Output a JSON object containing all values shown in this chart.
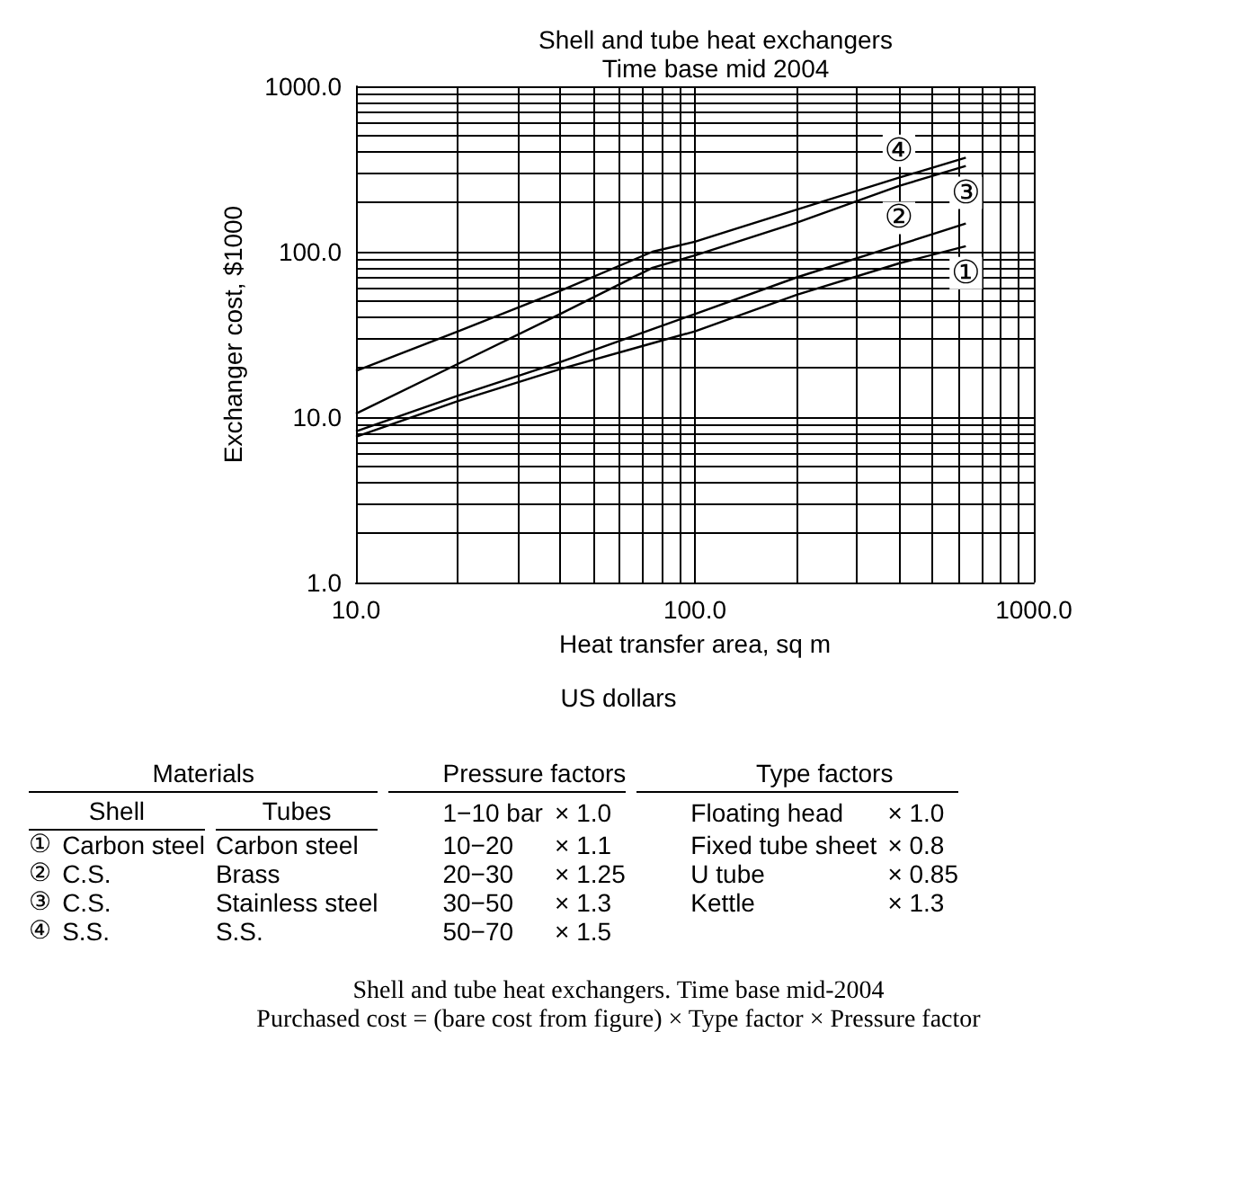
{
  "chart_data": {
    "type": "line",
    "title": "Shell and tube heat exchangers",
    "subtitle": "Time base mid 2004",
    "xlabel": "Heat transfer area, sq m",
    "ylabel": "Exchanger cost, $1000",
    "log": "xy",
    "grid": true,
    "legend": false,
    "marker": "none",
    "line_style": "solid",
    "x": [
      10,
      20,
      40,
      75,
      100,
      200,
      400,
      630
    ],
    "series": [
      {
        "name": "①",
        "color": "#000000",
        "values": [
          7.6,
          12.5,
          19.5,
          28,
          33,
          55,
          85,
          108
        ]
      },
      {
        "name": "②",
        "color": "#000000",
        "values": [
          8.2,
          13.5,
          21.5,
          34,
          42,
          70,
          110,
          148
        ]
      },
      {
        "name": "③",
        "color": "#000000",
        "values": [
          10.5,
          21,
          42,
          80,
          95,
          150,
          250,
          330
        ]
      },
      {
        "name": "④",
        "color": "#000000",
        "values": [
          19,
          33,
          58,
          100,
          115,
          180,
          280,
          370
        ]
      }
    ],
    "xlim": [
      10,
      1000
    ],
    "ylim": [
      1,
      1000
    ],
    "xticks": [
      {
        "value": 10,
        "label": "10.0"
      },
      {
        "value": 20,
        "label": null
      },
      {
        "value": 30,
        "label": null
      },
      {
        "value": 40,
        "label": null
      },
      {
        "value": 50,
        "label": null
      },
      {
        "value": 60,
        "label": null
      },
      {
        "value": 70,
        "label": null
      },
      {
        "value": 80,
        "label": null
      },
      {
        "value": 90,
        "label": null
      },
      {
        "value": 100,
        "label": "100.0"
      },
      {
        "value": 200,
        "label": null
      },
      {
        "value": 300,
        "label": null
      },
      {
        "value": 400,
        "label": null
      },
      {
        "value": 500,
        "label": null
      },
      {
        "value": 600,
        "label": null
      },
      {
        "value": 700,
        "label": null
      },
      {
        "value": 800,
        "label": null
      },
      {
        "value": 900,
        "label": null
      },
      {
        "value": 1000,
        "label": "1000.0"
      }
    ],
    "yticks": [
      {
        "value": 1,
        "label": "1.0"
      },
      {
        "value": 2,
        "label": null
      },
      {
        "value": 3,
        "label": null
      },
      {
        "value": 4,
        "label": null
      },
      {
        "value": 5,
        "label": null
      },
      {
        "value": 6,
        "label": null
      },
      {
        "value": 7,
        "label": null
      },
      {
        "value": 8,
        "label": null
      },
      {
        "value": 9,
        "label": null
      },
      {
        "value": 10,
        "label": "10.0"
      },
      {
        "value": 20,
        "label": null
      },
      {
        "value": 30,
        "label": null
      },
      {
        "value": 40,
        "label": null
      },
      {
        "value": 50,
        "label": null
      },
      {
        "value": 60,
        "label": null
      },
      {
        "value": 70,
        "label": null
      },
      {
        "value": 80,
        "label": null
      },
      {
        "value": 90,
        "label": null
      },
      {
        "value": 100,
        "label": "100.0"
      },
      {
        "value": 200,
        "label": null
      },
      {
        "value": 300,
        "label": null
      },
      {
        "value": 400,
        "label": null
      },
      {
        "value": 500,
        "label": null
      },
      {
        "value": 600,
        "label": null
      },
      {
        "value": 700,
        "label": null
      },
      {
        "value": 800,
        "label": null
      },
      {
        "value": 900,
        "label": null
      },
      {
        "value": 1000,
        "label": "1000.0"
      }
    ],
    "annotations": [
      "US dollars",
      "Materials\t\t\tPressure factors\t\tType factors\t",
      "Shell\t\tTubes\t1−10 bar\t× 1.0\tFloating head\t× 1.0",
      "①\tCarbon steel\tCarbon steel\t10−20\t× 1.1\tFixed tube sheet\t× 0.8",
      "②\tC.S.\tBrass\t20−30\t× 1.25\tU tube\t× 0.85",
      "③\tC.S.\tStainless steel\t30−50\t× 1.3\tKettle\t× 1.3",
      "④\tS.S.\tS.S.\t50−70\t× 1.5\t\t",
      "Shell and tube heat exchangers. Time base mid-2004",
      "Purchased cost = (bare cost from figure) × Type factor × Pressure factor"
    ]
  }
}
